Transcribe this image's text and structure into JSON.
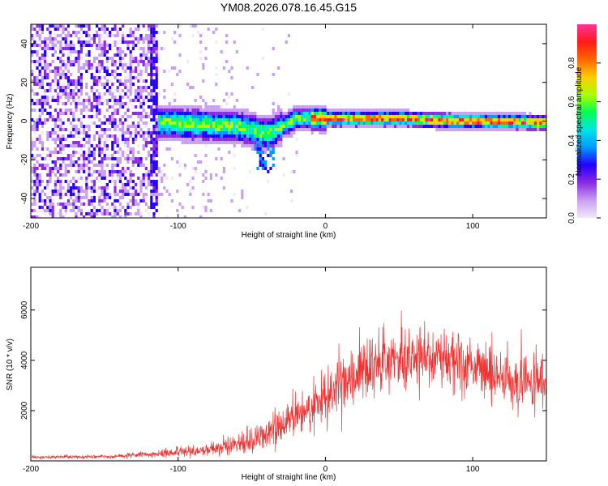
{
  "title": "YM08.2026.078.16.45.G15",
  "chart_data": [
    {
      "type": "heatmap",
      "name": "spectrogram",
      "xlabel": "Height of straight line (km)",
      "ylabel": "Frequency (Hz)",
      "xlim": [
        -200,
        150
      ],
      "ylim": [
        -50,
        50
      ],
      "xticks": [
        -200,
        -100,
        0,
        100
      ],
      "yticks": [
        -40,
        -20,
        0,
        20,
        40
      ],
      "colorbar": {
        "label": "Normalized spectral amplitude",
        "range": [
          0,
          1
        ],
        "ticks": [
          "0.0",
          "0.2",
          "0.4",
          "0.6",
          "0.8"
        ],
        "tick_values": [
          0.0,
          0.2,
          0.4,
          0.6,
          0.8
        ],
        "colors": [
          "#f2e8fb",
          "#c9a0f0",
          "#8a2be2",
          "#2200ff",
          "#0099ff",
          "#00e5e5",
          "#00ff55",
          "#aaff00",
          "#ffcc00",
          "#ff6600",
          "#ff1a1a",
          "#ff3399"
        ]
      },
      "features": [
        {
          "region": "noise",
          "x_range": [
            -200,
            -115
          ],
          "freq_range": [
            -50,
            50
          ],
          "amplitude": "low-medium"
        },
        {
          "region": "onset",
          "x_range": [
            -118,
            -115
          ],
          "freq_range": [
            -50,
            50
          ],
          "amplitude": "medium"
        },
        {
          "region": "signal",
          "x_range": [
            -115,
            150
          ],
          "center_freq": [
            [
              -115,
              0
            ],
            [
              -60,
              -2
            ],
            [
              -40,
              -6
            ],
            [
              -20,
              2
            ],
            [
              0,
              2
            ],
            [
              50,
              2
            ],
            [
              80,
              1
            ],
            [
              150,
              0
            ]
          ],
          "amplitude": "high"
        }
      ]
    },
    {
      "type": "line",
      "name": "snr",
      "xlabel": "Height of straight line (km)",
      "ylabel": "SNR (10 * v/v)",
      "xlim": [
        -200,
        150
      ],
      "ylim": [
        0,
        7700
      ],
      "xticks": [
        -200,
        -100,
        0,
        100
      ],
      "yticks": [
        2000,
        4000,
        6000
      ],
      "color": "#ee3333",
      "trend": {
        "x": [
          -200,
          -150,
          -120,
          -100,
          -80,
          -60,
          -40,
          -20,
          0,
          20,
          40,
          60,
          80,
          100,
          120,
          150
        ],
        "mean": [
          150,
          170,
          250,
          350,
          450,
          650,
          1000,
          1700,
          2600,
          3400,
          4000,
          4200,
          4200,
          3800,
          3300,
          3000
        ],
        "amp": [
          70,
          90,
          150,
          250,
          300,
          450,
          800,
          1100,
          1400,
          1500,
          1600,
          1700,
          1700,
          1600,
          1400,
          1300
        ]
      }
    }
  ]
}
